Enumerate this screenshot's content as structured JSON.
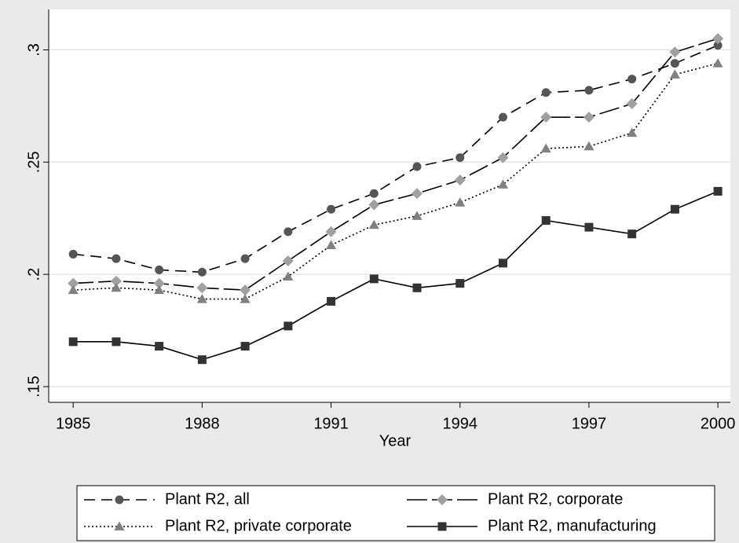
{
  "chart_data": {
    "type": "line",
    "x": [
      1985,
      1986,
      1987,
      1988,
      1989,
      1990,
      1991,
      1992,
      1993,
      1994,
      1995,
      1996,
      1997,
      1998,
      1999,
      2000
    ],
    "xlabel": "Year",
    "xlim": [
      1984.43,
      2000.29
    ],
    "xticks": [
      1985,
      1988,
      1991,
      1994,
      1997,
      2000
    ],
    "ylim": [
      0.143,
      0.318
    ],
    "yticks": [
      {
        "value": 0.15,
        "label": ".15"
      },
      {
        "value": 0.2,
        "label": ".2"
      },
      {
        "value": 0.25,
        "label": ".25"
      },
      {
        "value": 0.3,
        "label": ".3"
      }
    ],
    "grid": true,
    "series": [
      {
        "name": "Plant R2, all",
        "color": "#000000",
        "marker_color": "#555555",
        "marker": "circle",
        "dash": "14,8",
        "values": [
          0.209,
          0.207,
          0.202,
          0.201,
          0.207,
          0.219,
          0.229,
          0.236,
          0.248,
          0.252,
          0.27,
          0.281,
          0.282,
          0.287,
          0.294,
          0.302
        ]
      },
      {
        "name": "Plant R2, corporate",
        "color": "#000000",
        "marker_color": "#a0a0a0",
        "marker": "diamond",
        "dash": "26,6",
        "values": [
          0.196,
          0.197,
          0.196,
          0.194,
          0.193,
          0.206,
          0.219,
          0.231,
          0.236,
          0.242,
          0.252,
          0.27,
          0.27,
          0.276,
          0.299,
          0.305
        ]
      },
      {
        "name": "Plant R2, private corporate",
        "color": "#000000",
        "marker_color": "#808080",
        "marker": "triangle",
        "dash": "2,3",
        "values": [
          0.193,
          0.194,
          0.193,
          0.189,
          0.189,
          0.199,
          0.213,
          0.222,
          0.226,
          0.232,
          0.24,
          0.256,
          0.257,
          0.263,
          0.289,
          0.294
        ]
      },
      {
        "name": "Plant R2, manufacturing",
        "color": "#000000",
        "marker_color": "#333333",
        "marker": "square",
        "dash": "none",
        "values": [
          0.17,
          0.17,
          0.168,
          0.162,
          0.168,
          0.177,
          0.188,
          0.198,
          0.194,
          0.196,
          0.205,
          0.224,
          0.221,
          0.218,
          0.229,
          0.237
        ]
      }
    ]
  }
}
